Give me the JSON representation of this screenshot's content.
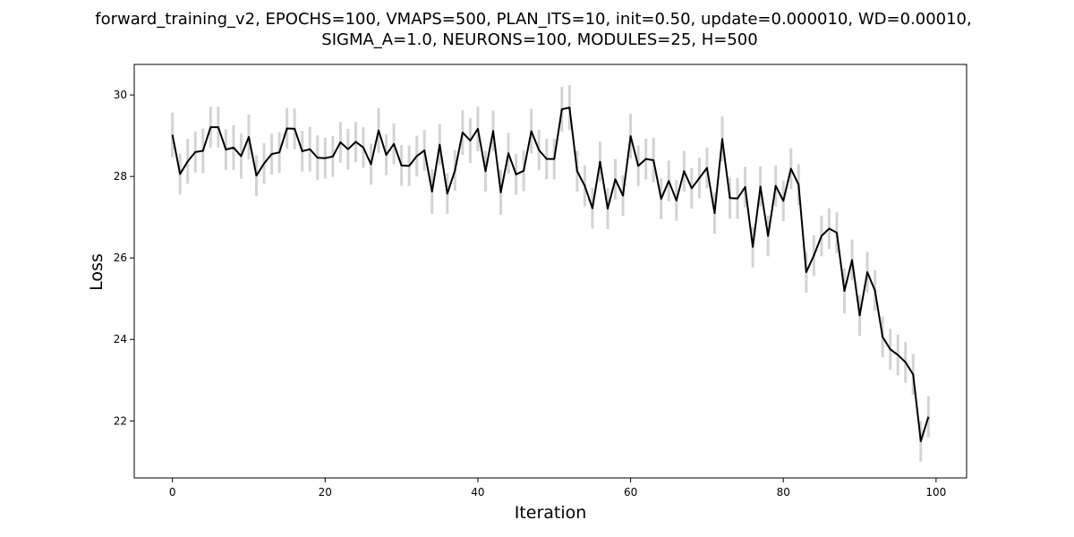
{
  "chart_data": {
    "type": "line",
    "title_lines": [
      "forward_training_v2, EPOCHS=100, VMAPS=500, PLAN_ITS=10, init=0.50, update=0.000010, WD=0.00010,",
      "SIGMA_A=1.0, NEURONS=100, MODULES=25, H=500"
    ],
    "xlabel": "Iteration",
    "ylabel": "Loss",
    "xlim": [
      -5,
      104
    ],
    "ylim": [
      20.6,
      30.75
    ],
    "xticks": [
      0,
      20,
      40,
      60,
      80,
      100
    ],
    "yticks": [
      22,
      24,
      26,
      28,
      30
    ],
    "grid": false,
    "line_color": "#000000",
    "error_bar_color": "#d3d3d3",
    "series": [
      {
        "x": [
          0,
          1,
          2,
          3,
          4,
          5,
          6,
          7,
          8,
          9,
          10,
          11,
          12,
          13,
          14,
          15,
          16,
          17,
          18,
          19,
          20,
          21,
          22,
          23,
          24,
          25,
          26,
          27,
          28,
          29,
          30,
          31,
          32,
          33,
          34,
          35,
          36,
          37,
          38,
          39,
          40,
          41,
          42,
          43,
          44,
          45,
          46,
          47,
          48,
          49,
          50,
          51,
          52,
          53,
          54,
          55,
          56,
          57,
          58,
          59,
          60,
          61,
          62,
          63,
          64,
          65,
          66,
          67,
          68,
          69,
          70,
          71,
          72,
          73,
          74,
          75,
          76,
          77,
          78,
          79,
          80,
          81,
          82,
          83,
          84,
          85,
          86,
          87,
          88,
          89,
          90,
          91,
          92,
          93,
          94,
          95,
          96,
          97,
          98,
          99
        ],
        "values": [
          29.02,
          28.06,
          28.37,
          28.6,
          28.63,
          29.21,
          29.21,
          28.66,
          28.71,
          28.5,
          28.97,
          28.02,
          28.32,
          28.55,
          28.59,
          29.18,
          29.17,
          28.62,
          28.67,
          28.46,
          28.45,
          28.49,
          28.84,
          28.67,
          28.85,
          28.71,
          28.3,
          29.13,
          28.53,
          28.8,
          28.27,
          28.26,
          28.5,
          28.64,
          27.63,
          28.78,
          27.58,
          28.15,
          29.08,
          28.88,
          29.17,
          28.13,
          29.12,
          27.61,
          28.57,
          28.05,
          28.14,
          29.11,
          28.65,
          28.43,
          28.43,
          29.65,
          29.69,
          28.13,
          27.77,
          27.22,
          28.36,
          27.21,
          27.93,
          27.53,
          28.99,
          28.26,
          28.43,
          28.4,
          27.45,
          27.89,
          27.41,
          28.13,
          27.71,
          27.96,
          28.21,
          27.1,
          28.92,
          27.47,
          27.46,
          27.74,
          26.27,
          27.75,
          26.54,
          27.77,
          27.4,
          28.19,
          27.8,
          25.65,
          26.06,
          26.54,
          26.72,
          26.62,
          25.19,
          25.95,
          24.59,
          25.65,
          25.2,
          24.06,
          23.76,
          23.62,
          23.44,
          23.14,
          21.5,
          22.1
        ],
        "errors": [
          0.55,
          0.5,
          0.55,
          0.5,
          0.55,
          0.5,
          0.5,
          0.5,
          0.55,
          0.55,
          0.55,
          0.5,
          0.5,
          0.5,
          0.5,
          0.5,
          0.5,
          0.5,
          0.55,
          0.55,
          0.5,
          0.5,
          0.5,
          0.5,
          0.5,
          0.5,
          0.5,
          0.55,
          0.5,
          0.5,
          0.5,
          0.5,
          0.5,
          0.5,
          0.55,
          0.5,
          0.5,
          0.5,
          0.55,
          0.55,
          0.55,
          0.5,
          0.5,
          0.55,
          0.5,
          0.5,
          0.5,
          0.55,
          0.5,
          0.5,
          0.5,
          0.55,
          0.55,
          0.5,
          0.5,
          0.5,
          0.5,
          0.5,
          0.5,
          0.5,
          0.55,
          0.5,
          0.5,
          0.55,
          0.5,
          0.5,
          0.5,
          0.5,
          0.5,
          0.5,
          0.5,
          0.5,
          0.55,
          0.5,
          0.5,
          0.5,
          0.5,
          0.5,
          0.5,
          0.5,
          0.5,
          0.5,
          0.5,
          0.5,
          0.5,
          0.5,
          0.5,
          0.5,
          0.55,
          0.5,
          0.5,
          0.5,
          0.5,
          0.5,
          0.5,
          0.5,
          0.5,
          0.5,
          0.5,
          0.5
        ]
      }
    ]
  }
}
